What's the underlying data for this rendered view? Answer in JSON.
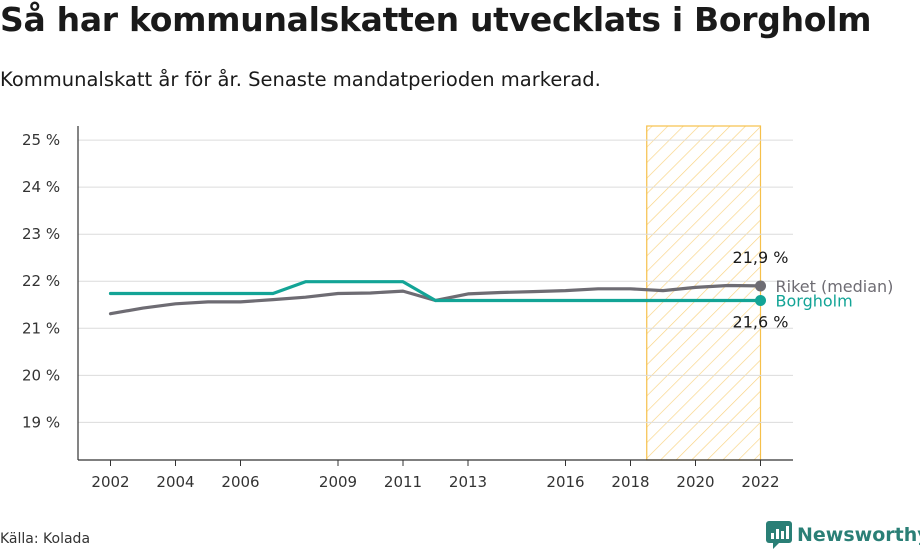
{
  "header": {
    "title": "Så har kommunalskatten utvecklats i Borgholm",
    "subtitle": "Kommunalskatt år för år. Senaste mandatperioden markerad."
  },
  "footer": {
    "source": "Källa: Kolada",
    "brand": "Newsworthy"
  },
  "colors": {
    "borgholm": "#13a496",
    "riket": "#6e6c73",
    "highlight": "#f6c04a",
    "grid": "#dcdcdc",
    "axis": "#333333"
  },
  "icons": {
    "brand": "newsworthy-logo-icon"
  },
  "chart_data": {
    "type": "line",
    "title": "Så har kommunalskatten utvecklats i Borgholm",
    "subtitle": "Kommunalskatt år för år. Senaste mandatperioden markerad.",
    "x": [
      2002,
      2003,
      2004,
      2005,
      2006,
      2007,
      2008,
      2009,
      2010,
      2011,
      2012,
      2013,
      2014,
      2015,
      2016,
      2017,
      2018,
      2019,
      2020,
      2021,
      2022
    ],
    "xlim": [
      2001,
      2023
    ],
    "x_ticks": [
      2002,
      2004,
      2006,
      2009,
      2011,
      2013,
      2016,
      2018,
      2020,
      2022
    ],
    "ylim": [
      18.2,
      25.3
    ],
    "y_ticks": [
      19,
      20,
      21,
      22,
      23,
      24,
      25
    ],
    "y_tick_labels": [
      "19 %",
      "20 %",
      "21 %",
      "22 %",
      "23 %",
      "24 %",
      "25 %"
    ],
    "grid": "horizontal",
    "highlight_range": [
      2018.5,
      2022
    ],
    "series": [
      {
        "name": "Riket (median)",
        "color": "#6e6c73",
        "values": [
          21.31,
          21.43,
          21.52,
          21.56,
          21.56,
          21.61,
          21.66,
          21.74,
          21.75,
          21.79,
          21.59,
          21.73,
          21.76,
          21.78,
          21.8,
          21.84,
          21.84,
          21.8,
          21.87,
          21.91,
          21.9
        ],
        "end_value_label": "21,9 %"
      },
      {
        "name": "Borgholm",
        "color": "#13a496",
        "values": [
          21.74,
          21.74,
          21.74,
          21.74,
          21.74,
          21.74,
          21.99,
          21.99,
          21.99,
          21.99,
          21.59,
          21.59,
          21.59,
          21.59,
          21.59,
          21.59,
          21.59,
          21.59,
          21.59,
          21.59,
          21.59
        ],
        "end_value_label": "21,6 %"
      }
    ]
  }
}
